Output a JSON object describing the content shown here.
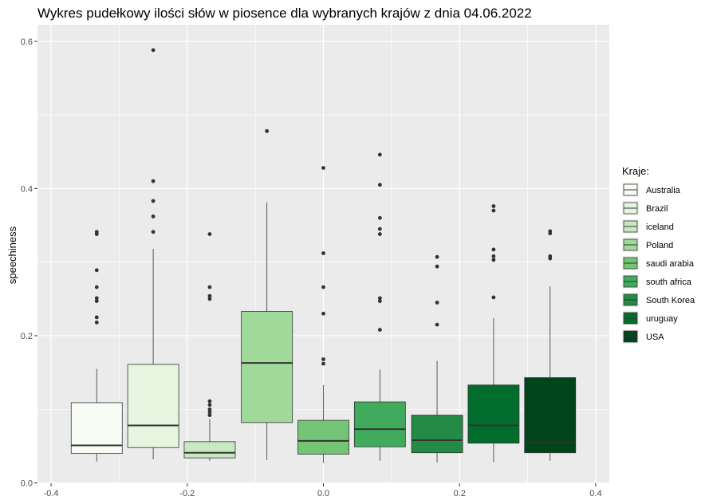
{
  "chart_data": {
    "type": "boxplot",
    "title": "Wykres pudełkowy ilości słów w piosence dla wybranych krajów z dnia 04.06.2022",
    "xlabel": "",
    "ylabel": "speechiness",
    "xlim": [
      -0.4,
      0.4
    ],
    "ylim": [
      0,
      0.6
    ],
    "x_ticks": [
      "-0.4",
      "-0.2",
      "0.0",
      "0.2",
      "0.4"
    ],
    "y_ticks": [
      "0.0",
      "0.2",
      "0.4",
      "0.6"
    ],
    "grid": true,
    "legend": {
      "title": "Kraje:",
      "position": "right"
    },
    "series": [
      {
        "name": "Australia",
        "color": "#f7fcf5",
        "x": -0.333,
        "q1": 0.04,
        "median": 0.051,
        "q3": 0.109,
        "whisker_low": 0.029,
        "whisker_high": 0.155,
        "outliers": [
          0.218,
          0.225,
          0.247,
          0.251,
          0.266,
          0.289,
          0.338,
          0.341
        ]
      },
      {
        "name": "Brazil",
        "color": "#e5f5e0",
        "x": -0.25,
        "q1": 0.048,
        "median": 0.078,
        "q3": 0.161,
        "whisker_low": 0.032,
        "whisker_high": 0.318,
        "outliers": [
          0.341,
          0.362,
          0.383,
          0.41,
          0.588
        ]
      },
      {
        "name": "iceland",
        "color": "#c7e9c0",
        "x": -0.167,
        "q1": 0.034,
        "median": 0.041,
        "q3": 0.056,
        "whisker_low": 0.03,
        "whisker_high": 0.087,
        "outliers": [
          0.092,
          0.096,
          0.1,
          0.106,
          0.111,
          0.25,
          0.254,
          0.266,
          0.338
        ]
      },
      {
        "name": "Poland",
        "color": "#a1d99b",
        "x": -0.083,
        "q1": 0.082,
        "median": 0.163,
        "q3": 0.233,
        "whisker_low": 0.031,
        "whisker_high": 0.381,
        "outliers": [
          0.478
        ]
      },
      {
        "name": "saudi arabia",
        "color": "#74c476",
        "x": 0.0,
        "q1": 0.039,
        "median": 0.057,
        "q3": 0.085,
        "whisker_low": 0.027,
        "whisker_high": 0.133,
        "outliers": [
          0.162,
          0.168,
          0.23,
          0.266,
          0.312,
          0.428
        ]
      },
      {
        "name": "south africa",
        "color": "#41ab5d",
        "x": 0.083,
        "q1": 0.049,
        "median": 0.073,
        "q3": 0.11,
        "whisker_low": 0.03,
        "whisker_high": 0.154,
        "outliers": [
          0.208,
          0.247,
          0.251,
          0.338,
          0.345,
          0.36,
          0.405,
          0.446
        ]
      },
      {
        "name": "South Korea",
        "color": "#238b45",
        "x": 0.167,
        "q1": 0.041,
        "median": 0.058,
        "q3": 0.092,
        "whisker_low": 0.028,
        "whisker_high": 0.166,
        "outliers": [
          0.215,
          0.245,
          0.294,
          0.307
        ]
      },
      {
        "name": "uruguay",
        "color": "#006d2c",
        "x": 0.25,
        "q1": 0.054,
        "median": 0.078,
        "q3": 0.133,
        "whisker_low": 0.028,
        "whisker_high": 0.224,
        "outliers": [
          0.252,
          0.303,
          0.308,
          0.317,
          0.37,
          0.376
        ]
      },
      {
        "name": "USA",
        "color": "#00441b",
        "x": 0.333,
        "q1": 0.041,
        "median": 0.055,
        "q3": 0.143,
        "whisker_low": 0.03,
        "whisker_high": 0.267,
        "outliers": [
          0.305,
          0.308,
          0.339,
          0.342
        ]
      }
    ],
    "box_width": 0.075
  }
}
